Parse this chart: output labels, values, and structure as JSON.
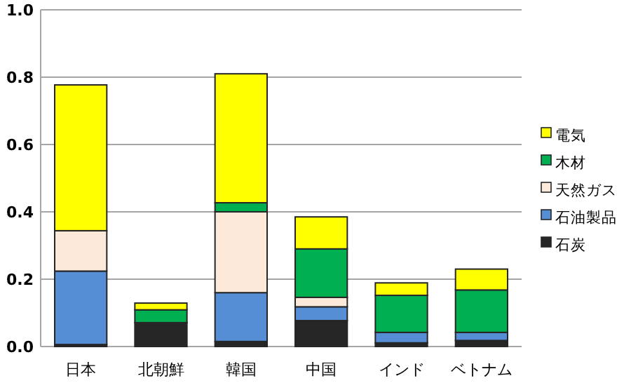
{
  "chart_data": {
    "type": "bar",
    "stacked": true,
    "categories": [
      "日本",
      "北朝鮮",
      "韓国",
      "中国",
      "インド",
      "ベトナム"
    ],
    "series": [
      {
        "name": "石炭",
        "color": "#262626",
        "values": [
          0.006,
          0.071,
          0.015,
          0.077,
          0.011,
          0.018
        ]
      },
      {
        "name": "石油製品",
        "color": "#558ed5",
        "values": [
          0.218,
          0,
          0.145,
          0.041,
          0.031,
          0.024
        ]
      },
      {
        "name": "天然ガス",
        "color": "#fde9d9",
        "values": [
          0.12,
          0,
          0.24,
          0.028,
          0,
          0
        ]
      },
      {
        "name": "木材",
        "color": "#00b050",
        "values": [
          0,
          0.038,
          0.027,
          0.144,
          0.11,
          0.126
        ]
      },
      {
        "name": "電気",
        "color": "#ffff00",
        "values": [
          0.433,
          0.02,
          0.383,
          0.095,
          0.037,
          0.062
        ]
      }
    ],
    "ylim": [
      0,
      1
    ],
    "yticks": [
      {
        "value": 0,
        "label": "0.0"
      },
      {
        "value": 0.2,
        "label": "0.2"
      },
      {
        "value": 0.4,
        "label": "0.4"
      },
      {
        "value": 0.6,
        "label": "0.6"
      },
      {
        "value": 0.8,
        "label": "0.8"
      },
      {
        "value": 1,
        "label": "1.0"
      }
    ],
    "grid": "y",
    "legend": "right"
  }
}
